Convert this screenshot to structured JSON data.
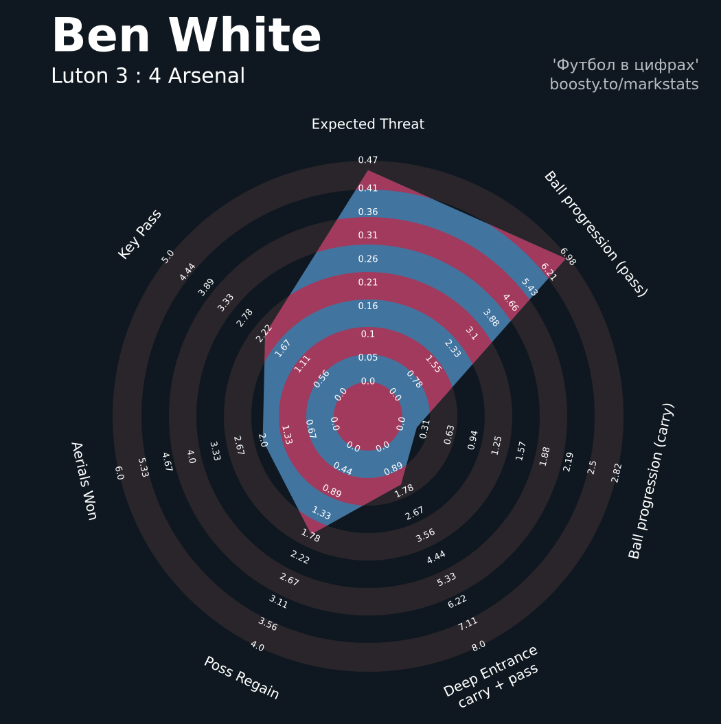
{
  "chart_data": {
    "type": "radar",
    "title": "Ben White",
    "subtitle": "Luton 3 : 4 Arsenal",
    "annotations": [
      "'Футбол в цифрах'",
      "boosty.to/markstats"
    ],
    "categories": [
      "Expected Threat",
      "Ball progression (pass)",
      "Ball progression (carry)",
      [
        "Deep Entrance",
        "carry + pass"
      ],
      "Poss Regain",
      "Aerials Won",
      "Key Pass"
    ],
    "axes": [
      {
        "lim": [
          0,
          0.47
        ],
        "ticks": [
          {
            "value": 0,
            "label": "0.0"
          },
          0.05,
          0.1,
          0.16,
          0.21,
          0.26,
          0.31,
          0.36,
          0.41,
          0.47
        ]
      },
      {
        "lim": [
          0,
          6.98
        ],
        "ticks": [
          {
            "value": 0,
            "label": "0.0"
          },
          0.78,
          1.55,
          2.33,
          3.1,
          3.88,
          4.66,
          5.43,
          6.21,
          6.98
        ]
      },
      {
        "lim": [
          0,
          2.82
        ],
        "ticks": [
          {
            "value": 0,
            "label": "0.0"
          },
          0.31,
          0.63,
          0.94,
          1.25,
          1.57,
          1.88,
          2.19,
          2.5,
          2.82
        ]
      },
      {
        "lim": [
          0,
          8
        ],
        "ticks": [
          {
            "value": 0,
            "label": "0.0"
          },
          0.89,
          1.78,
          2.67,
          3.56,
          4.44,
          5.33,
          6.22,
          7.11,
          {
            "value": 8,
            "label": "8.0"
          }
        ]
      },
      {
        "lim": [
          0,
          4
        ],
        "ticks": [
          {
            "value": 0,
            "label": "0.0"
          },
          0.44,
          0.89,
          1.33,
          1.78,
          2.22,
          2.67,
          3.11,
          3.56,
          {
            "value": 4,
            "label": "4.0"
          }
        ]
      },
      {
        "lim": [
          0,
          6
        ],
        "ticks": [
          {
            "value": 0,
            "label": "0.0"
          },
          0.67,
          1.33,
          {
            "value": 2,
            "label": "2.0"
          },
          2.67,
          3.33,
          {
            "value": 4,
            "label": "4.0"
          },
          4.67,
          5.33,
          {
            "value": 6,
            "label": "6.0"
          }
        ]
      },
      {
        "lim": [
          0,
          5
        ],
        "ticks": [
          {
            "value": 0,
            "label": "0.0"
          },
          0.56,
          1.11,
          1.67,
          2.22,
          2.78,
          3.33,
          3.89,
          4.44,
          {
            "value": 5,
            "label": "5.0"
          }
        ]
      }
    ],
    "series": [
      {
        "color": "#4274a0",
        "values": [
          0.45,
          6.9,
          0.2,
          1.5,
          1.75,
          2.0,
          2.2
        ]
      }
    ],
    "band_color": "#a23a5d",
    "ring_color": "#29252b"
  }
}
